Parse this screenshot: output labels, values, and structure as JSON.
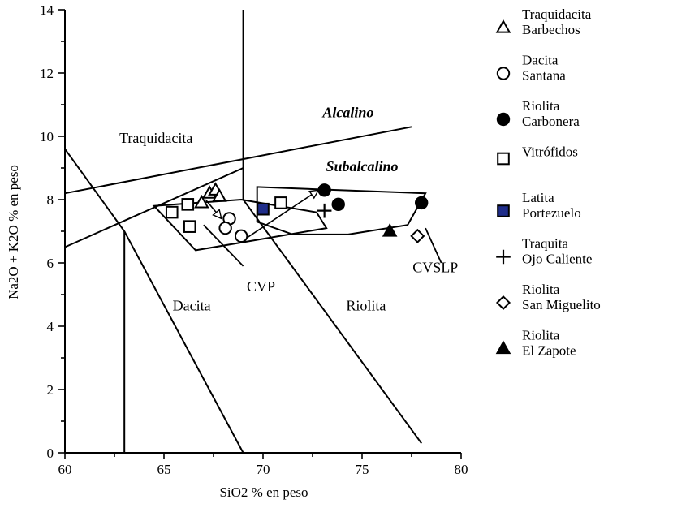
{
  "chart_data": {
    "type": "scatter",
    "xlabel": "SiO2 % en peso",
    "ylabel": "Na2O + K2O % en peso",
    "xlim": [
      60,
      80
    ],
    "ylim": [
      0,
      14
    ],
    "xticks": [
      "60",
      "65",
      "70",
      "75",
      "80"
    ],
    "yticks": [
      "0",
      "2",
      "4",
      "6",
      "8",
      "10",
      "12",
      "14"
    ],
    "grid": false,
    "legend_position": "right",
    "field_labels": [
      {
        "text": "Traquidacita",
        "x": 64.6,
        "y": 9.8,
        "style": "normal"
      },
      {
        "text": "Alcalino",
        "x": 74.3,
        "y": 10.6,
        "style": "bold-italic"
      },
      {
        "text": "Subalcalino",
        "x": 75.0,
        "y": 8.9,
        "style": "bold-italic"
      },
      {
        "text": "Dacita",
        "x": 66.4,
        "y": 4.5,
        "style": "normal"
      },
      {
        "text": "Riolita",
        "x": 75.2,
        "y": 4.5,
        "style": "normal"
      },
      {
        "text": "CVP",
        "x": 69.9,
        "y": 5.1,
        "style": "normal"
      },
      {
        "text": "CVSLP",
        "x": 78.7,
        "y": 5.7,
        "style": "normal"
      }
    ],
    "boundary_lines": [
      {
        "points": [
          [
            60,
            9.6
          ],
          [
            63,
            7.0
          ],
          [
            69,
            0.0
          ]
        ]
      },
      {
        "points": [
          [
            63,
            7.0
          ],
          [
            63,
            0.0
          ]
        ]
      },
      {
        "points": [
          [
            69,
            14.0
          ],
          [
            69,
            8.0
          ]
        ]
      },
      {
        "points": [
          [
            69,
            8.0
          ],
          [
            78,
            0.3
          ]
        ]
      },
      {
        "points": [
          [
            60,
            8.2
          ],
          [
            77.5,
            10.3
          ]
        ]
      },
      {
        "points": [
          [
            60,
            6.5
          ],
          [
            69,
            9.0
          ]
        ]
      }
    ],
    "fields": [
      {
        "name": "CVP",
        "points": [
          [
            64.5,
            7.8
          ],
          [
            68.9,
            8.0
          ],
          [
            72.7,
            7.6
          ],
          [
            73.2,
            7.1
          ],
          [
            66.6,
            6.4
          ]
        ]
      },
      {
        "name": "CVSLP",
        "points": [
          [
            69.7,
            8.4
          ],
          [
            78.2,
            8.2
          ],
          [
            77.3,
            7.2
          ],
          [
            74.3,
            6.9
          ],
          [
            71.5,
            6.9
          ],
          [
            69.7,
            7.3
          ]
        ]
      }
    ],
    "callout_lines": [
      {
        "label": "CVP",
        "points": [
          [
            69.0,
            5.9
          ],
          [
            67.0,
            7.2
          ]
        ]
      },
      {
        "label": "CVSLP",
        "points": [
          [
            79.0,
            6.0
          ],
          [
            78.2,
            7.1
          ]
        ]
      }
    ],
    "arrows": [
      {
        "from": [
          67.1,
          8.0
        ],
        "to": [
          67.9,
          7.4
        ]
      },
      {
        "from": [
          69.2,
          6.8
        ],
        "to": [
          72.8,
          8.3
        ]
      }
    ],
    "legend": [
      {
        "label": "Traquidacita\nBarbechos",
        "marker": "triangle-open",
        "fill": "#ffffff"
      },
      {
        "label": "Dacita\nSantana",
        "marker": "circle-open",
        "fill": "#ffffff"
      },
      {
        "label": "Riolita\nCarbonera",
        "marker": "circle-filled",
        "fill": "#000000"
      },
      {
        "label": "Vitrófidos",
        "marker": "square-open",
        "fill": "#ffffff"
      },
      {
        "label": "Latita\nPortezuelo",
        "marker": "square-filled",
        "fill": "#1f2d8a"
      },
      {
        "label": "Traquita\nOjo Caliente",
        "marker": "plus",
        "fill": "#000000"
      },
      {
        "label": "Riolita\nSan Miguelito",
        "marker": "diamond-open",
        "fill": "#ffffff"
      },
      {
        "label": "Riolita\nEl Zapote",
        "marker": "triangle-filled",
        "fill": "#000000"
      }
    ],
    "series": [
      {
        "name": "Traquidacita Barbechos",
        "marker": "triangle-open",
        "fill": "#ffffff",
        "points": [
          [
            66.9,
            7.9
          ],
          [
            67.3,
            8.2
          ],
          [
            67.6,
            8.3
          ],
          [
            67.8,
            8.1
          ]
        ]
      },
      {
        "name": "Dacita Santana",
        "marker": "circle-open",
        "fill": "#ffffff",
        "points": [
          [
            68.3,
            7.4
          ],
          [
            68.1,
            7.1
          ],
          [
            68.9,
            6.85
          ]
        ]
      },
      {
        "name": "Riolita Carbonera",
        "marker": "circle-filled",
        "fill": "#000000",
        "points": [
          [
            73.1,
            8.3
          ],
          [
            73.8,
            7.85
          ],
          [
            78.0,
            7.9
          ]
        ]
      },
      {
        "name": "Vitrófidos",
        "marker": "square-open",
        "fill": "#ffffff",
        "points": [
          [
            65.4,
            7.6
          ],
          [
            66.2,
            7.85
          ],
          [
            66.3,
            7.15
          ],
          [
            70.9,
            7.9
          ]
        ]
      },
      {
        "name": "Latita Portezuelo",
        "marker": "square-filled",
        "fill": "#1f2d8a",
        "points": [
          [
            70.0,
            7.7
          ]
        ]
      },
      {
        "name": "Traquita Ojo Caliente",
        "marker": "plus",
        "fill": "#000000",
        "points": [
          [
            73.1,
            7.65
          ]
        ]
      },
      {
        "name": "Riolita San Miguelito",
        "marker": "diamond-open",
        "fill": "#ffffff",
        "points": [
          [
            77.8,
            6.85
          ]
        ]
      },
      {
        "name": "Riolita El Zapote",
        "marker": "triangle-filled",
        "fill": "#000000",
        "points": [
          [
            76.4,
            7.0
          ]
        ]
      }
    ]
  }
}
